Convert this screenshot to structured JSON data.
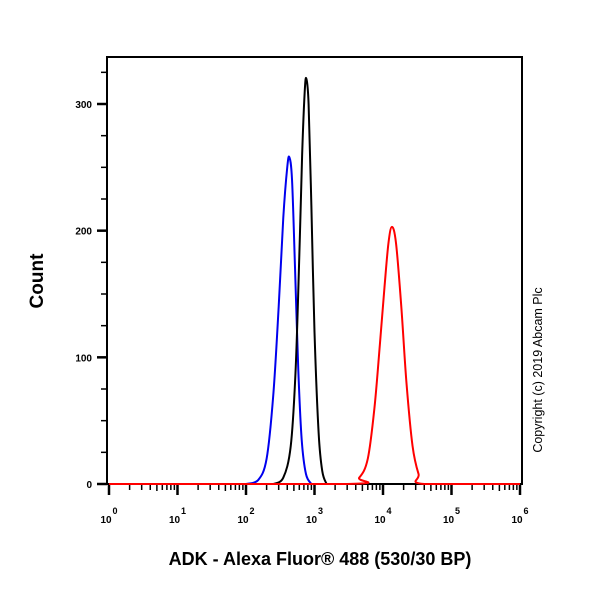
{
  "chart_data": {
    "type": "line",
    "title": "",
    "xlabel": "ADK - Alexa Fluor® 488 (530/30 BP)",
    "ylabel": "Count",
    "xscale": "log",
    "xlim": [
      1,
      1000000
    ],
    "ylim": [
      0,
      340
    ],
    "x_ticks": [
      "10^0",
      "10^1",
      "10^2",
      "10^3",
      "10^4",
      "10^5",
      "10^6"
    ],
    "y_ticks": [
      0,
      100,
      200,
      300
    ],
    "grid": false,
    "legend": null,
    "annotations": [
      "Copyright (c) 2019 Abcam Plc"
    ],
    "series": [
      {
        "name": "blue-histogram",
        "color": "#0000ee",
        "peak_x": 430,
        "peak_y": 258,
        "points": [
          [
            100,
            0
          ],
          [
            150,
            3
          ],
          [
            200,
            20
          ],
          [
            250,
            70
          ],
          [
            300,
            140
          ],
          [
            350,
            210
          ],
          [
            400,
            250
          ],
          [
            430,
            258
          ],
          [
            470,
            240
          ],
          [
            520,
            170
          ],
          [
            580,
            90
          ],
          [
            650,
            35
          ],
          [
            750,
            8
          ],
          [
            900,
            0
          ]
        ]
      },
      {
        "name": "black-histogram",
        "color": "#000000",
        "peak_x": 760,
        "peak_y": 320,
        "points": [
          [
            250,
            0
          ],
          [
            350,
            5
          ],
          [
            450,
            30
          ],
          [
            530,
            90
          ],
          [
            600,
            180
          ],
          [
            660,
            260
          ],
          [
            720,
            310
          ],
          [
            760,
            320
          ],
          [
            820,
            300
          ],
          [
            900,
            220
          ],
          [
            1000,
            120
          ],
          [
            1150,
            40
          ],
          [
            1300,
            10
          ],
          [
            1500,
            0
          ]
        ]
      },
      {
        "name": "red-histogram",
        "color": "#ff0000",
        "peak_x": 13500,
        "peak_y": 203,
        "points": [
          [
            1,
            0
          ],
          [
            3000,
            0
          ],
          [
            4500,
            5
          ],
          [
            6000,
            20
          ],
          [
            7500,
            60
          ],
          [
            9000,
            110
          ],
          [
            10500,
            155
          ],
          [
            12000,
            190
          ],
          [
            13500,
            203
          ],
          [
            15500,
            190
          ],
          [
            18500,
            140
          ],
          [
            22000,
            80
          ],
          [
            27000,
            30
          ],
          [
            33000,
            8
          ],
          [
            40000,
            0
          ],
          [
            1000000,
            0
          ]
        ]
      }
    ]
  },
  "labels": {
    "ylabel": "Count",
    "xlabel": "ADK - Alexa Fluor® 488 (530/30 BP)",
    "copyright": "Copyright (c) 2019 Abcam Plc",
    "y_ticks": [
      "0",
      "100",
      "200",
      "300"
    ],
    "x_ticks_base": "10",
    "x_ticks_exp": [
      "0",
      "1",
      "2",
      "3",
      "4",
      "5",
      "6"
    ]
  }
}
